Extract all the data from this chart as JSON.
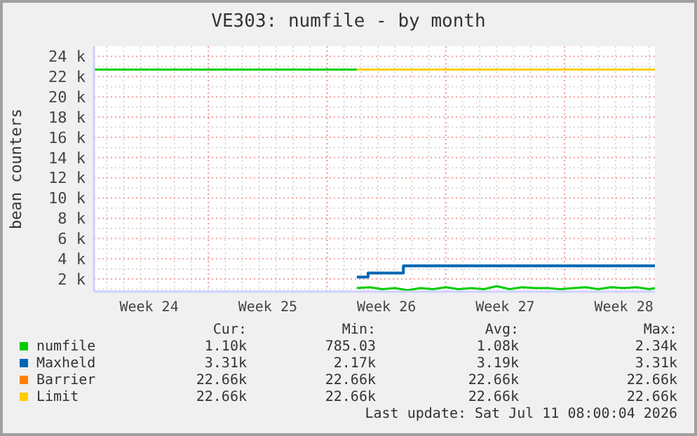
{
  "chart_data": {
    "type": "line",
    "title": "VE303: numfile - by month",
    "ylabel": "bean counters",
    "xlim": [
      "2026-06-08T06:00",
      "2026-07-11T08:00"
    ],
    "xticks": [
      {
        "value": "2026-06-11T12:00",
        "label": "Week 24"
      },
      {
        "value": "2026-06-18T12:00",
        "label": "Week 25"
      },
      {
        "value": "2026-06-25T12:00",
        "label": "Week 26"
      },
      {
        "value": "2026-07-02T12:00",
        "label": "Week 27"
      },
      {
        "value": "2026-07-09T12:00",
        "label": "Week 28"
      }
    ],
    "ylim": [
      760,
      25000
    ],
    "yticks": [
      {
        "value": 2000,
        "label": "2 k"
      },
      {
        "value": 4000,
        "label": "4 k"
      },
      {
        "value": 6000,
        "label": "6 k"
      },
      {
        "value": 8000,
        "label": "8 k"
      },
      {
        "value": 10000,
        "label": "10 k"
      },
      {
        "value": 12000,
        "label": "12 k"
      },
      {
        "value": 14000,
        "label": "14 k"
      },
      {
        "value": 16000,
        "label": "16 k"
      },
      {
        "value": 18000,
        "label": "18 k"
      },
      {
        "value": 20000,
        "label": "20 k"
      },
      {
        "value": 22000,
        "label": "22 k"
      },
      {
        "value": 24000,
        "label": "24 k"
      }
    ],
    "grid": true,
    "legend": "bottom",
    "series": [
      {
        "name": "numfile",
        "color": "#00cc00",
        "x": [
          "2026-06-23T18:00",
          "2026-06-24T12:00",
          "2026-06-25T06:00",
          "2026-06-26T00:00",
          "2026-06-26T18:00",
          "2026-06-27T12:00",
          "2026-06-28T06:00",
          "2026-06-29T00:00",
          "2026-06-29T18:00",
          "2026-06-30T12:00",
          "2026-07-01T06:00",
          "2026-07-02T00:00",
          "2026-07-02T18:00",
          "2026-07-03T12:00",
          "2026-07-04T06:00",
          "2026-07-05T00:00",
          "2026-07-05T18:00",
          "2026-07-06T12:00",
          "2026-07-07T06:00",
          "2026-07-08T00:00",
          "2026-07-08T18:00",
          "2026-07-09T12:00",
          "2026-07-10T06:00",
          "2026-07-11T00:00",
          "2026-07-11T08:00"
        ],
        "values": [
          1100,
          1200,
          1000,
          1100,
          900,
          1100,
          1000,
          1200,
          1000,
          1100,
          1000,
          1300,
          1000,
          1200,
          1100,
          1100,
          1000,
          1100,
          1200,
          1000,
          1200,
          1100,
          1200,
          1000,
          1100
        ]
      },
      {
        "name": "Maxheld",
        "color": "#0066b3",
        "type": "step",
        "x": [
          "2026-06-23T18:00",
          "2026-06-24T10:00",
          "2026-06-26T12:00",
          "2026-07-11T08:00"
        ],
        "values": [
          2200,
          2600,
          3300,
          3300
        ]
      },
      {
        "name": "Barrier",
        "color": "#ff8000"
      },
      {
        "name": "Limit",
        "color": "#ffcc00",
        "x": [
          "2026-06-23T18:00",
          "2026-07-11T08:00"
        ],
        "values": [
          22700,
          22700
        ]
      },
      {
        "color": "#00cc00",
        "x": [
          "2026-06-08T06:00",
          "2026-06-23T18:00"
        ],
        "values": [
          22700,
          22700
        ]
      }
    ],
    "annotations": [
      "Cur:",
      "Min:",
      "Avg:",
      "Max:",
      "1.10k",
      "785.03",
      "1.08k",
      "2.34k",
      "3.31k",
      "2.17k",
      "3.19k",
      "3.31k",
      "22.66k",
      "22.66k",
      "22.66k",
      "22.66k",
      "22.66k",
      "22.66k",
      "22.66k",
      "22.66k",
      "Last update: Sat Jul 11 08:00:04 2026"
    ]
  }
}
